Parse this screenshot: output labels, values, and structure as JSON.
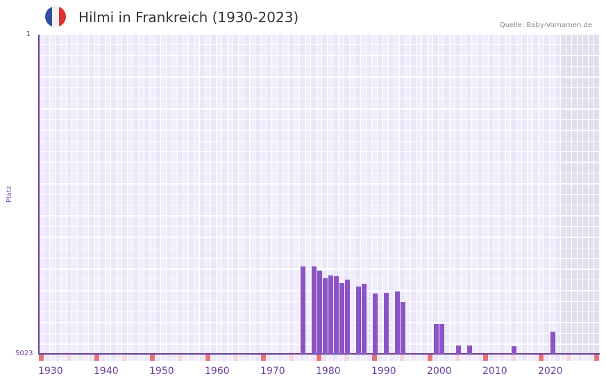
{
  "header": {
    "title": "Hilmi in Frankreich (1930-2023)",
    "source": "Quelle: Baby-Vornamen.de",
    "flag_colors": [
      "#2f4fa3",
      "#f2f2f2",
      "#e03030"
    ]
  },
  "colors": {
    "bar": "#8b54c6",
    "axis": "#6a3d9a",
    "grid_a": "#f1edfb",
    "grid_b": "#ebe6f8",
    "future_shade": "#e2dfed",
    "decade_marker": "#e5737a",
    "half_decade_marker": "#f4d7de"
  },
  "chart_data": {
    "type": "bar",
    "title": "Hilmi in Frankreich (1930-2023)",
    "xlabel": "",
    "ylabel": "Platz",
    "y_inverted": true,
    "ylim": [
      1,
      5023
    ],
    "y_ticks": [
      "1",
      "5023"
    ],
    "x_range": [
      1930,
      2030
    ],
    "x_ticks": [
      "1930",
      "1940",
      "1950",
      "1960",
      "1970",
      "1980",
      "1990",
      "2000",
      "2010",
      "2020"
    ],
    "grid": true,
    "legend": null,
    "x": [
      1977,
      1979,
      1980,
      1981,
      1982,
      1983,
      1984,
      1985,
      1987,
      1988,
      1990,
      1992,
      1994,
      1995,
      2001,
      2002,
      2005,
      2007,
      2015,
      2022
    ],
    "values": [
      3647,
      3647,
      3713,
      3833,
      3789,
      3800,
      3909,
      3855,
      3964,
      3920,
      4073,
      4062,
      4040,
      4204,
      4553,
      4553,
      4892,
      4892,
      4903,
      4674
    ]
  }
}
